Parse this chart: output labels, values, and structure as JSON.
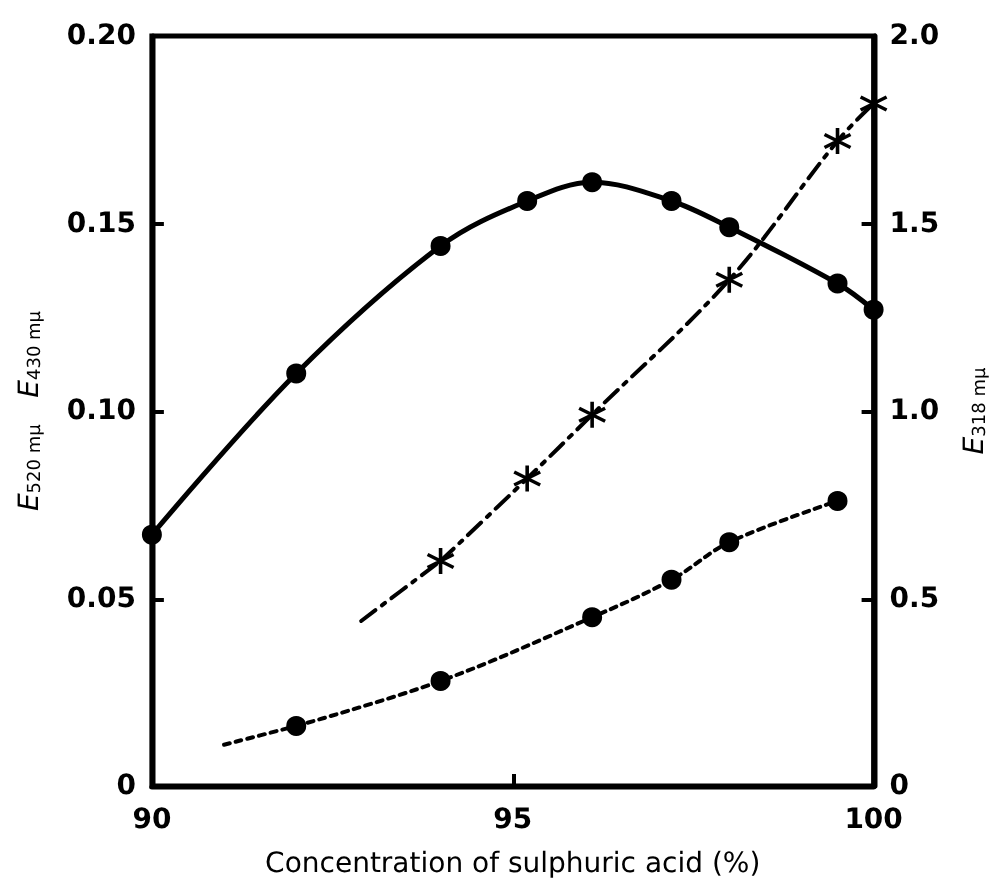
{
  "chart_data": {
    "type": "line",
    "xlabel": "Concentration of sulphuric acid (%)",
    "ylabel": "E$_{520 mμ}$   E$_{430 mμ}$",
    "y2label": "E$_{318 mμ}$",
    "xlim": [
      90,
      100
    ],
    "xticks": [
      90,
      95,
      100
    ],
    "ylim": [
      0,
      0.2
    ],
    "yticks": [
      0,
      0.05,
      {
        "value": 0.1,
        "label": "0.10"
      },
      0.15,
      {
        "value": 0.2,
        "label": "0.20"
      }
    ],
    "y2lim": [
      0,
      2
    ],
    "y2ticks": [
      0,
      0.5,
      {
        "value": 1,
        "label": "1.0"
      },
      1.5,
      {
        "value": 2,
        "label": "2.0"
      }
    ],
    "grid": false,
    "series": [
      {
        "color": "#000000",
        "marker": "circle",
        "line_style": "solid",
        "x": [
          90,
          92,
          94,
          95.2,
          96.1,
          97.2,
          98,
          99.5,
          100
        ],
        "values": [
          0.067,
          0.11,
          0.144,
          0.156,
          0.161,
          0.156,
          0.149,
          0.134,
          0.127
        ]
      },
      {
        "color": "#000000",
        "marker": "cross",
        "line_style": "dashed",
        "axis": "y2",
        "x": [
          94,
          95.2,
          96.1,
          98,
          99.5,
          100
        ],
        "values": [
          0.6,
          0.82,
          0.99,
          1.35,
          1.72,
          1.82
        ]
      },
      {
        "color": "#000000",
        "marker": "none",
        "line_style": "dashed",
        "axis": "y2",
        "x": [
          92.9,
          94
        ],
        "values": [
          0.44,
          0.6
        ]
      },
      {
        "color": "#000000",
        "marker": "circle",
        "line_style": "dotted",
        "x": [
          92,
          94,
          96.1,
          97.2,
          98,
          99.5
        ],
        "values": [
          0.016,
          0.028,
          0.045,
          0.055,
          0.065,
          0.076
        ]
      },
      {
        "color": "#000000",
        "marker": "none",
        "line_style": "dotted",
        "x": [
          91,
          92
        ],
        "values": [
          0.011,
          0.016
        ]
      }
    ]
  }
}
